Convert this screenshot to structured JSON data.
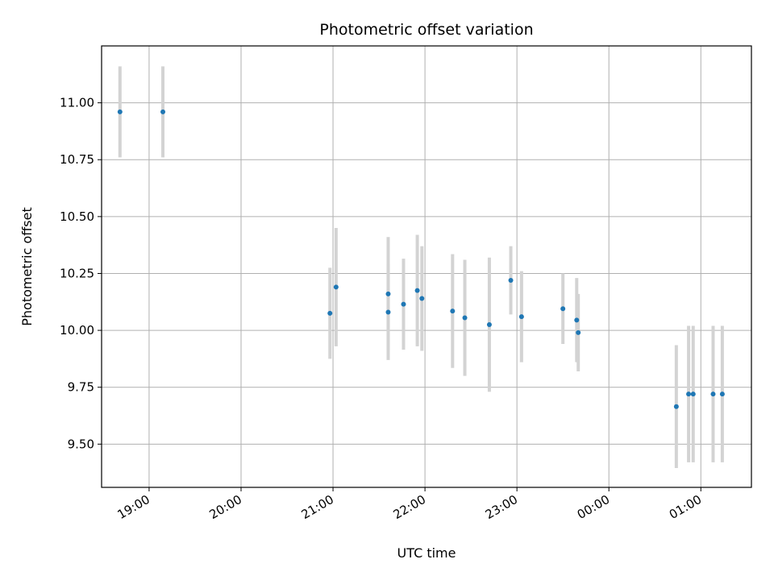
{
  "chart_data": {
    "type": "scatter",
    "title": "Photometric offset variation",
    "xlabel": "UTC time",
    "ylabel": "Photometric offset",
    "x_axis": "time",
    "x_ticks": [
      "19:00",
      "20:00",
      "21:00",
      "22:00",
      "23:00",
      "00:00",
      "01:00"
    ],
    "y_ticks": [
      "9.50",
      "9.75",
      "10.00",
      "10.25",
      "10.50",
      "10.75",
      "11.00"
    ],
    "xlim": [
      "18:29",
      "01:33"
    ],
    "ylim": [
      9.31,
      11.25
    ],
    "grid": true,
    "marker_color": "#1f77b4",
    "errorbar_color": "#d3d3d3",
    "series": [
      {
        "points": [
          {
            "x": "18:41",
            "y": 10.96,
            "err": 0.2
          },
          {
            "x": "19:09",
            "y": 10.96,
            "err": 0.2
          },
          {
            "x": "20:58",
            "y": 10.075,
            "err": 0.2
          },
          {
            "x": "21:02",
            "y": 10.19,
            "err": 0.26
          },
          {
            "x": "21:36",
            "y": 10.16,
            "err": 0.25
          },
          {
            "x": "21:36",
            "y": 10.08,
            "err": 0.21
          },
          {
            "x": "21:46",
            "y": 10.115,
            "err": 0.2
          },
          {
            "x": "21:55",
            "y": 10.175,
            "err": 0.245
          },
          {
            "x": "21:58",
            "y": 10.14,
            "err": 0.23
          },
          {
            "x": "22:18",
            "y": 10.085,
            "err": 0.25
          },
          {
            "x": "22:26",
            "y": 10.055,
            "err": 0.255
          },
          {
            "x": "22:42",
            "y": 10.025,
            "err": 0.295
          },
          {
            "x": "22:56",
            "y": 10.22,
            "err": 0.15
          },
          {
            "x": "23:03",
            "y": 10.06,
            "err": 0.2
          },
          {
            "x": "23:30",
            "y": 10.095,
            "err": 0.155
          },
          {
            "x": "23:39",
            "y": 10.045,
            "err": 0.185
          },
          {
            "x": "23:40",
            "y": 9.99,
            "err": 0.17
          },
          {
            "x": "00:44",
            "y": 9.665,
            "err": 0.27
          },
          {
            "x": "00:52",
            "y": 9.72,
            "err": 0.3
          },
          {
            "x": "00:55",
            "y": 9.72,
            "err": 0.3
          },
          {
            "x": "01:08",
            "y": 9.72,
            "err": 0.3
          },
          {
            "x": "01:14",
            "y": 9.72,
            "err": 0.3
          }
        ]
      }
    ]
  }
}
